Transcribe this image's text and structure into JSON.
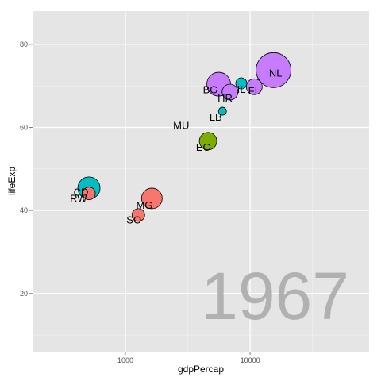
{
  "chart_data": {
    "type": "scatter",
    "title": "",
    "xlabel": "gdpPercap",
    "ylabel": "lifeExp",
    "x_scale": "log",
    "xlim": [
      180,
      90000
    ],
    "ylim": [
      6,
      88
    ],
    "x_ticks": [
      1000,
      10000
    ],
    "x_tick_labels": [
      "1000",
      "10000"
    ],
    "y_ticks": [
      20,
      40,
      60,
      80
    ],
    "y_tick_labels": [
      "20",
      "40",
      "60",
      "80"
    ],
    "grid": true,
    "legend": "none",
    "annotation": "1967",
    "points": [
      {
        "label": "",
        "x": 15400,
        "y": 73.8,
        "size": 22,
        "color": "#c77cff"
      },
      {
        "label": "",
        "x": 5600,
        "y": 70.4,
        "size": 15,
        "color": "#c77cff"
      },
      {
        "label": "",
        "x": 6900,
        "y": 68.5,
        "size": 10,
        "color": "#c77cff"
      },
      {
        "label": "",
        "x": 10800,
        "y": 69.8,
        "size": 10,
        "color": "#c77cff"
      },
      {
        "label": "",
        "x": 8500,
        "y": 70.6,
        "size": 7,
        "color": "#00bfc4"
      },
      {
        "label": "",
        "x": 6000,
        "y": 63.9,
        "size": 5,
        "color": "#00bfc4"
      },
      {
        "label": "",
        "x": 4600,
        "y": 56.7,
        "size": 11,
        "color": "#7cae00"
      },
      {
        "label": "",
        "x": 510,
        "y": 45.4,
        "size": 14,
        "color": "#00bfc4"
      },
      {
        "label": "",
        "x": 510,
        "y": 44.1,
        "size": 8,
        "color": "#f8766d"
      },
      {
        "label": "",
        "x": 1630,
        "y": 42.9,
        "size": 13,
        "color": "#f8766d"
      },
      {
        "label": "",
        "x": 1270,
        "y": 38.9,
        "size": 8,
        "color": "#f8766d"
      }
    ],
    "text_labels": [
      {
        "text": "NL",
        "x": 16000,
        "y": 73.2
      },
      {
        "text": "BG",
        "x": 4800,
        "y": 69.2
      },
      {
        "text": "IL",
        "x": 8500,
        "y": 69.3
      },
      {
        "text": "HR",
        "x": 6300,
        "y": 67.2
      },
      {
        "text": "FI",
        "x": 10500,
        "y": 68.9
      },
      {
        "text": "LB",
        "x": 5300,
        "y": 62.6
      },
      {
        "text": "MU",
        "x": 2800,
        "y": 60.6
      },
      {
        "text": "EC",
        "x": 4200,
        "y": 55.3
      },
      {
        "text": "CD",
        "x": 440,
        "y": 44.5
      },
      {
        "text": "RW",
        "x": 420,
        "y": 43.0
      },
      {
        "text": "MG",
        "x": 1420,
        "y": 41.4
      },
      {
        "text": "SO",
        "x": 1170,
        "y": 37.8
      }
    ]
  }
}
